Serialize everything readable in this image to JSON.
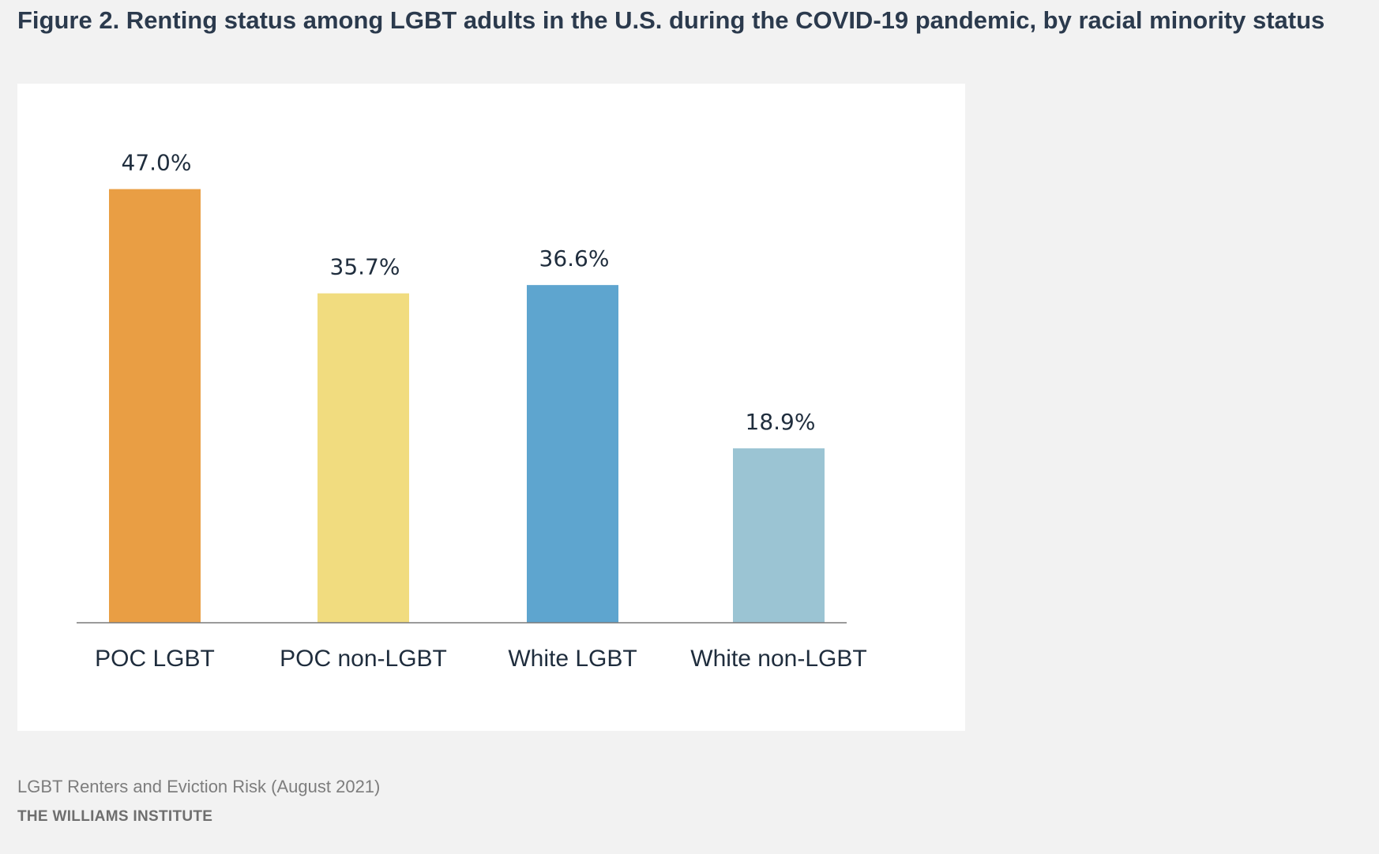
{
  "title": "Figure 2. Renting status among LGBT adults in the U.S. during the COVID-19 pandemic, by racial minority status",
  "chart_data": {
    "type": "bar",
    "categories": [
      "POC LGBT",
      "POC non-LGBT",
      "White LGBT",
      "White non-LGBT"
    ],
    "values": [
      47.0,
      35.7,
      36.6,
      18.9
    ],
    "value_labels": [
      "47.0%",
      "35.7%",
      "36.6%",
      "18.9%"
    ],
    "colors": [
      "#e99e44",
      "#f1dc7f",
      "#5ea5cf",
      "#9bc4d3"
    ],
    "ylim": [
      0,
      50
    ],
    "grid": false,
    "legend": "none"
  },
  "footer": {
    "source": "LGBT Renters and Eviction Risk (August 2021)",
    "organization": "THE WILLIAMS INSTITUTE"
  }
}
